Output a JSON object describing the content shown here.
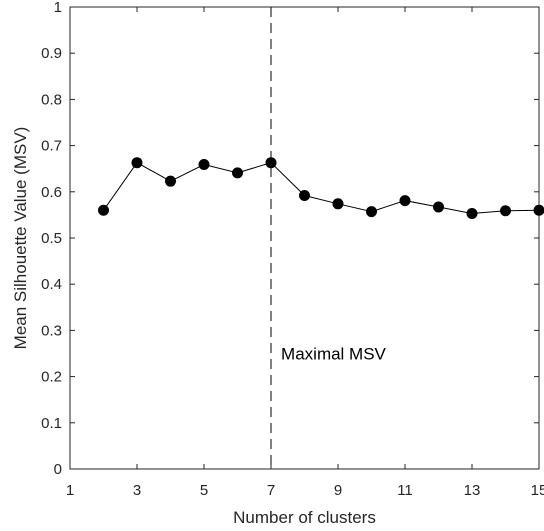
{
  "chart_data": {
    "type": "line",
    "title": "",
    "xlabel": "Number of clusters",
    "ylabel": "Mean Silhouette Value (MSV)",
    "xlim": [
      1,
      15
    ],
    "ylim": [
      0,
      1
    ],
    "x_ticks": [
      1,
      3,
      5,
      7,
      9,
      11,
      13,
      15
    ],
    "y_ticks": [
      "0",
      "0.1",
      "0.2",
      "0.3",
      "0.4",
      "0.5",
      "0.6",
      "0.7",
      "0.8",
      "0.9",
      "1"
    ],
    "grid": false,
    "series": [
      {
        "x": [
          2,
          3,
          4,
          5,
          6,
          7,
          8,
          9,
          10,
          11,
          12,
          13,
          14,
          15
        ],
        "y": [
          0.56,
          0.663,
          0.623,
          0.659,
          0.641,
          0.663,
          0.592,
          0.574,
          0.557,
          0.581,
          0.567,
          0.553,
          0.559,
          0.56
        ],
        "color": "#000000"
      }
    ],
    "reference_line": {
      "x": 7,
      "style": "dashed",
      "color": "#000000"
    },
    "annotation": {
      "text": "Maximal MSV",
      "x": 7.3,
      "y": 0.25
    }
  }
}
